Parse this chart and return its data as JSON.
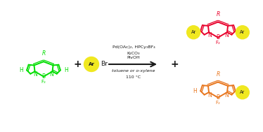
{
  "bg_color": "#ffffff",
  "green_color": "#00dd00",
  "orange_color": "#e8761e",
  "red_color": "#e8002a",
  "black_color": "#1a1a1a",
  "yellow_color": "#f0e820",
  "reagents_line1": "Pd(OAc)₂, HPCy₃BF₄",
  "reagents_line2": "K₂CO₃",
  "reagents_line3": "PivOH",
  "conditions_line1": "toluene or o-xylene",
  "conditions_line2": "110 °C",
  "figwidth": 3.74,
  "figheight": 1.89,
  "dpi": 100
}
